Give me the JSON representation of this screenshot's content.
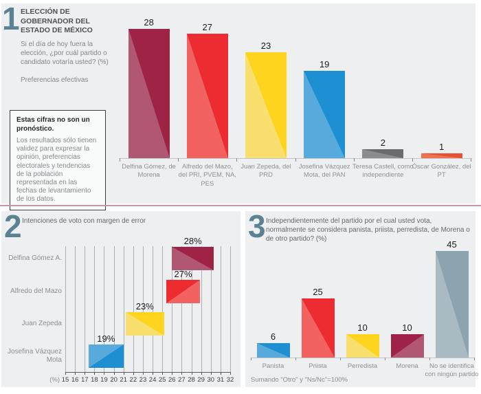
{
  "panel1": {
    "number": "1",
    "title": "ELECCIÓN DE GOBERNADOR DEL ESTADO DE MÉXICO",
    "question": "Si el día de hoy fuera la elección, ¿por cuál partido o candidato votaría usted? (%)",
    "subtitle": "Preferencias efectivas",
    "note_title": "Estas cifras no son un pronóstico.",
    "note_body": "Los resultados sólo tienen validez para expresar la opinión, preferencias electorales y tendencias de la población representada en las fechas de levantamiento de los datos."
  },
  "panel2": {
    "number": "2",
    "title": "Intenciones de voto con margen de error"
  },
  "panel3": {
    "number": "3",
    "title": "Independientemente del partido por el cual usted vota, normalmente se considera panista, priista, perredista, de Morena o de otro partido? (%)",
    "footnote": "Sumando \"Otro\" y \"Ns/Nc\"=100%"
  },
  "chart_data": [
    {
      "id": "preferencias-efectivas",
      "type": "bar",
      "title": "Preferencias efectivas",
      "question": "Si el día de hoy fuera la elección, ¿por cuál partido o candidato votaría usted? (%)",
      "unit": "%",
      "categories": [
        "Delfina Gómez, de Morena",
        "Alfredo del Mazo, del PRI, PVEM, NA, PES",
        "Juan Zepeda, del PRD",
        "Josefina Vázquez Mota, del PAN",
        "Teresa Castell, como independiente",
        "Óscar González, del PT"
      ],
      "values": [
        28,
        27,
        23,
        19,
        2,
        1
      ],
      "ylim": [
        0,
        30
      ],
      "grid": false,
      "colors": [
        {
          "dark": "#9e2347",
          "light": "#b05873",
          "lightCorner": "bl"
        },
        {
          "dark": "#ec2c31",
          "light": "#f26261",
          "lightCorner": "bl"
        },
        {
          "dark": "#fed41e",
          "light": "#f9df6e",
          "lightCorner": "bl"
        },
        {
          "dark": "#1e8fd2",
          "light": "#58aadc",
          "lightCorner": "bl"
        },
        {
          "dark": "#6a6d6f",
          "light": "#8b8e90",
          "lightCorner": "bl"
        },
        {
          "dark": "#e8502e",
          "light": "#ee7252",
          "lightCorner": "bl"
        }
      ]
    },
    {
      "id": "intenciones-margen-error",
      "type": "range_bar_horizontal",
      "title": "Intenciones de voto con margen de error",
      "categories": [
        "Delfina Gómez A.",
        "Alfredo del Mazo",
        "Juan Zepeda",
        "Josefina Vázquez Mota"
      ],
      "values": [
        28,
        27,
        23,
        19
      ],
      "value_labels": [
        "28%",
        "27%",
        "23%",
        "19%"
      ],
      "ranges": [
        [
          26.0,
          30.3
        ],
        [
          25.4,
          28.9
        ],
        [
          21.2,
          25.2
        ],
        [
          17.4,
          21.0
        ]
      ],
      "axis": {
        "min": 15,
        "max": 32,
        "step": 1,
        "unit_label": "(%)",
        "ticks": [
          15,
          16,
          17,
          18,
          19,
          20,
          21,
          22,
          23,
          24,
          25,
          26,
          27,
          28,
          29,
          30,
          31,
          32
        ]
      },
      "grid": true,
      "colors": [
        {
          "dark": "#9e2347",
          "light": "#b05873",
          "lightCorner": "bl"
        },
        {
          "dark": "#ec2c31",
          "light": "#f26261",
          "lightCorner": "br"
        },
        {
          "dark": "#fed41e",
          "light": "#f9df6e",
          "lightCorner": "bl"
        },
        {
          "dark": "#1e8fd2",
          "light": "#58aadc",
          "lightCorner": "tl"
        }
      ]
    },
    {
      "id": "identificacion-partidista",
      "type": "bar",
      "title": "Independientemente del partido por el cual usted vota, normalmente se considera panista, priista, perredista, de Morena o de otro partido? (%)",
      "unit": "%",
      "categories": [
        "Panista",
        "Priista",
        "Perredista",
        "Morena",
        "No se identifica con ningún partido"
      ],
      "values": [
        6,
        25,
        10,
        10,
        45
      ],
      "ylim": [
        0,
        47
      ],
      "grid": false,
      "footnote": "Sumando \"Otro\" y \"Ns/Nc\"=100%",
      "colors": [
        {
          "dark": "#1e8fd2",
          "light": "#58aadc",
          "lightCorner": "bl"
        },
        {
          "dark": "#ec2c31",
          "light": "#f26261",
          "lightCorner": "bl"
        },
        {
          "dark": "#fed41e",
          "light": "#f9df6e",
          "lightCorner": "bl"
        },
        {
          "dark": "#9e2347",
          "light": "#b05873",
          "lightCorner": "br"
        },
        {
          "dark": "#8ca3b0",
          "light": "#a9bac2",
          "lightCorner": "bl"
        }
      ]
    }
  ]
}
